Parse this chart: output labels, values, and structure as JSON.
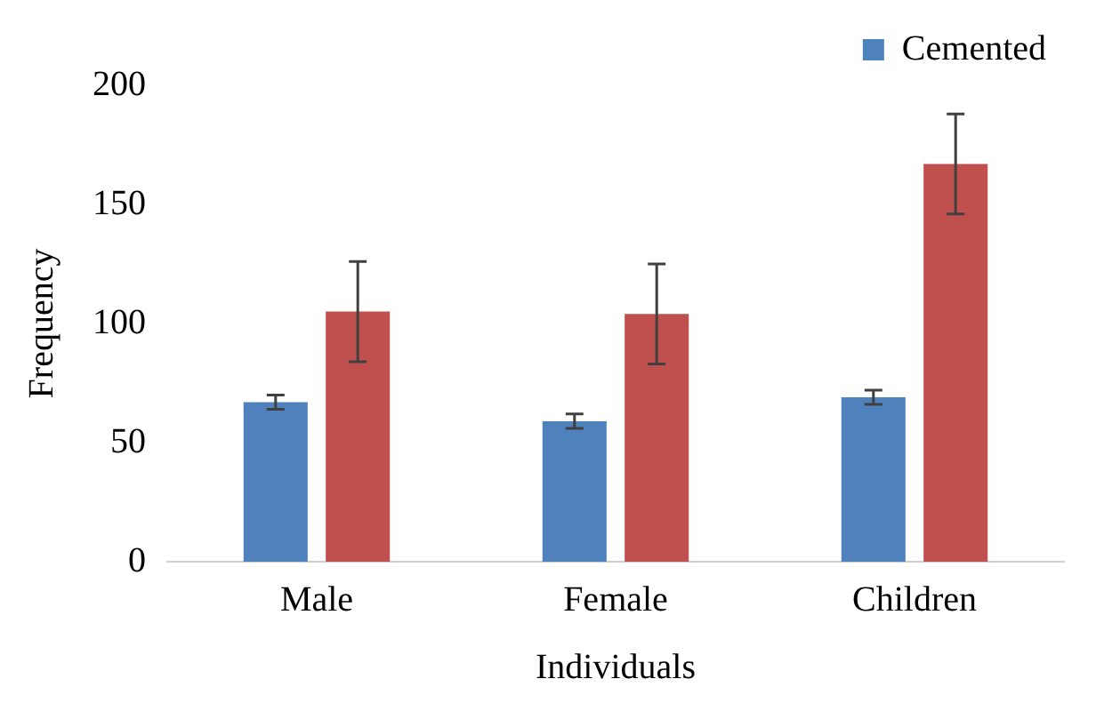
{
  "chart_data": {
    "type": "bar",
    "xlabel": "Individuals",
    "ylabel": "Frequency",
    "categories": [
      "Male",
      "Female",
      "Children"
    ],
    "series": [
      {
        "name": "Cemented",
        "color": "#4f81bd",
        "values": [
          67,
          59,
          69
        ],
        "errors": [
          3,
          3,
          3
        ]
      },
      {
        "color": "#c0504d",
        "values": [
          105,
          104,
          167
        ],
        "errors": [
          21,
          21,
          21
        ]
      }
    ],
    "ylim": [
      0,
      200
    ],
    "yticks": [
      0,
      50,
      100,
      150,
      200
    ],
    "grid": false,
    "legend": "top right"
  }
}
